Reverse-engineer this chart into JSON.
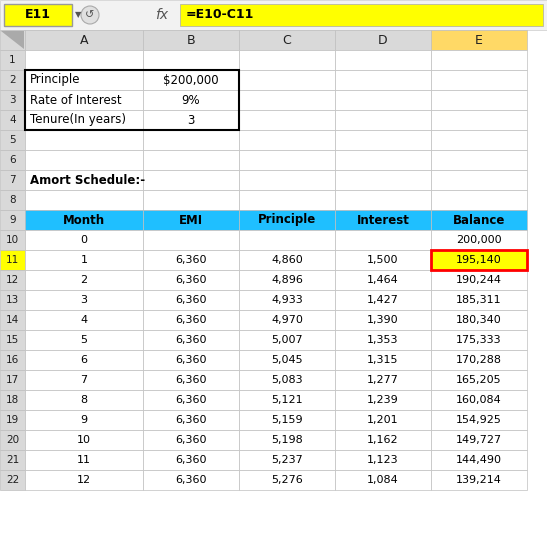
{
  "formula_bar_cell": "E11",
  "formula_bar_formula": "=E10-C11",
  "col_headers": [
    "A",
    "B",
    "C",
    "D",
    "E"
  ],
  "info_labels": [
    "Principle",
    "Rate of Interest",
    "Tenure(In years)"
  ],
  "info_values": [
    "$200,000",
    "9%",
    "3"
  ],
  "amort_title": "Amort Schedule:-",
  "table_headers": [
    "Month",
    "EMI",
    "Principle",
    "Interest",
    "Balance"
  ],
  "header_bg": "#1FBFFF",
  "row0": [
    "0",
    "",
    "",
    "",
    "200,000"
  ],
  "rows": [
    [
      "1",
      "6,360",
      "4,860",
      "1,500",
      "195,140"
    ],
    [
      "2",
      "6,360",
      "4,896",
      "1,464",
      "190,244"
    ],
    [
      "3",
      "6,360",
      "4,933",
      "1,427",
      "185,311"
    ],
    [
      "4",
      "6,360",
      "4,970",
      "1,390",
      "180,340"
    ],
    [
      "5",
      "6,360",
      "5,007",
      "1,353",
      "175,333"
    ],
    [
      "6",
      "6,360",
      "5,045",
      "1,315",
      "170,288"
    ],
    [
      "7",
      "6,360",
      "5,083",
      "1,277",
      "165,205"
    ],
    [
      "8",
      "6,360",
      "5,121",
      "1,239",
      "160,084"
    ],
    [
      "9",
      "6,360",
      "5,159",
      "1,201",
      "154,925"
    ],
    [
      "10",
      "6,360",
      "5,198",
      "1,162",
      "149,727"
    ],
    [
      "11",
      "6,360",
      "5,237",
      "1,123",
      "144,490"
    ],
    [
      "12",
      "6,360",
      "5,276",
      "1,084",
      "139,214"
    ]
  ],
  "highlight_color": "#FFFF00",
  "highlight_border_color": "#FF0000",
  "col_e_header_bg": "#FFD966",
  "toolbar_bg": "#F2F2F2",
  "col_header_bg": "#D9D9D9",
  "rn_col_bg": "#D9D9D9",
  "cell_bg": "#FFFFFF",
  "formula_cell_bg": "#FFFF00",
  "row11_rn_bg": "#FFFF00",
  "grid_color": "#BFBFBF",
  "fig_bg": "#FFFFFF"
}
